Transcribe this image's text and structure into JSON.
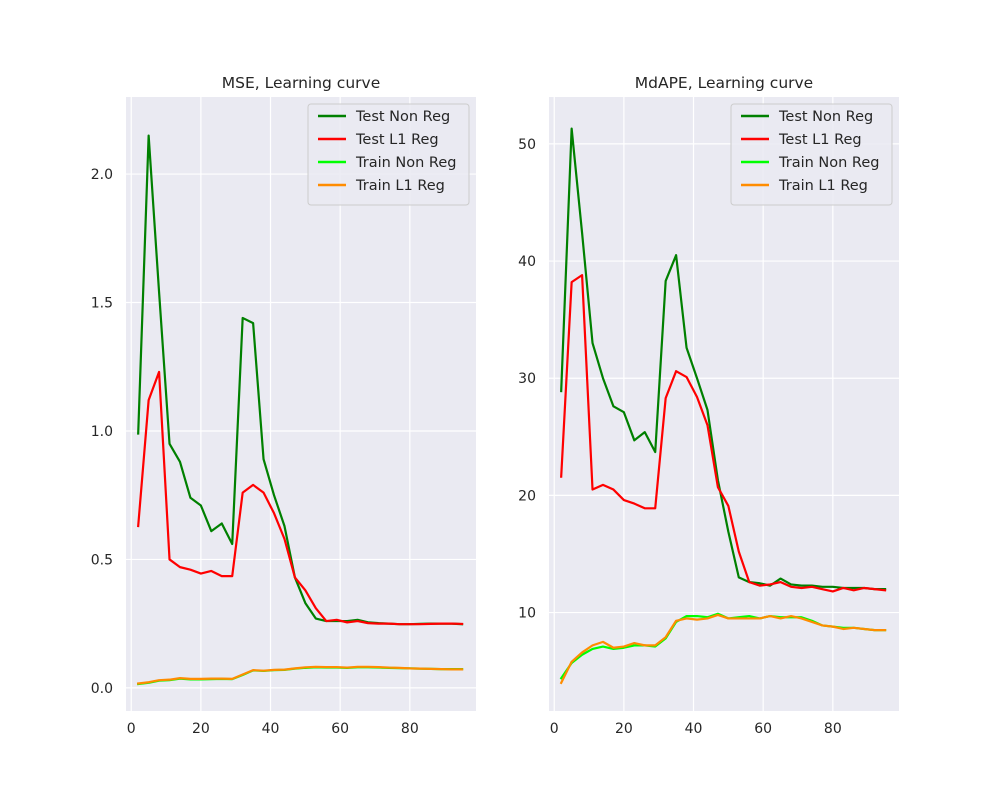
{
  "chart_data": [
    {
      "type": "line",
      "title": "MSE, Learning curve",
      "xlabel": "",
      "ylabel": "",
      "xlim": [
        -1.5,
        99
      ],
      "ylim": [
        -0.09,
        2.3
      ],
      "xticks": [
        0,
        20,
        40,
        60,
        80
      ],
      "yticks": [
        0.0,
        0.5,
        1.0,
        1.5,
        2.0
      ],
      "ytick_labels": [
        "0.0",
        "0.5",
        "1.0",
        "1.5",
        "2.0"
      ],
      "grid": true,
      "legend_position": "top-right",
      "x": [
        2,
        5,
        8,
        11,
        14,
        17,
        20,
        23,
        26,
        29,
        32,
        35,
        38,
        41,
        44,
        47,
        50,
        53,
        56,
        59,
        62,
        65,
        68,
        71,
        74,
        77,
        80,
        83,
        86,
        89,
        92,
        95
      ],
      "series": [
        {
          "name": "Test Non Reg",
          "color": "#008000",
          "values": [
            0.99,
            2.15,
            1.54,
            0.95,
            0.88,
            0.74,
            0.71,
            0.61,
            0.64,
            0.56,
            1.44,
            1.42,
            0.89,
            0.75,
            0.63,
            0.43,
            0.33,
            0.27,
            0.26,
            0.26,
            0.26,
            0.265,
            0.255,
            0.252,
            0.25,
            0.248,
            0.248,
            0.249,
            0.25,
            0.25,
            0.25,
            0.248
          ]
        },
        {
          "name": "Test L1 Reg",
          "color": "#ff0000",
          "values": [
            0.63,
            1.12,
            1.23,
            0.5,
            0.47,
            0.46,
            0.445,
            0.455,
            0.435,
            0.435,
            0.76,
            0.79,
            0.76,
            0.68,
            0.58,
            0.43,
            0.38,
            0.31,
            0.26,
            0.265,
            0.255,
            0.26,
            0.252,
            0.25,
            0.25,
            0.248,
            0.248,
            0.248,
            0.249,
            0.25,
            0.25,
            0.249
          ]
        },
        {
          "name": "Train Non Reg",
          "color": "#00ff00",
          "values": [
            0.015,
            0.02,
            0.028,
            0.03,
            0.036,
            0.033,
            0.033,
            0.034,
            0.035,
            0.034,
            0.05,
            0.068,
            0.066,
            0.069,
            0.07,
            0.075,
            0.078,
            0.08,
            0.079,
            0.079,
            0.078,
            0.08,
            0.08,
            0.079,
            0.078,
            0.077,
            0.076,
            0.075,
            0.074,
            0.073,
            0.073,
            0.073
          ]
        },
        {
          "name": "Train L1 Reg",
          "color": "#ff8c00",
          "values": [
            0.017,
            0.022,
            0.03,
            0.032,
            0.038,
            0.035,
            0.035,
            0.036,
            0.036,
            0.035,
            0.052,
            0.069,
            0.067,
            0.07,
            0.071,
            0.076,
            0.08,
            0.082,
            0.081,
            0.081,
            0.079,
            0.082,
            0.082,
            0.081,
            0.079,
            0.078,
            0.076,
            0.075,
            0.074,
            0.073,
            0.072,
            0.072
          ]
        }
      ]
    },
    {
      "type": "line",
      "title": "MdAPE, Learning curve",
      "xlabel": "",
      "ylabel": "",
      "xlim": [
        -1.5,
        99
      ],
      "ylim": [
        1.6,
        54.0
      ],
      "xticks": [
        0,
        20,
        40,
        60,
        80
      ],
      "yticks": [
        10,
        20,
        30,
        40,
        50
      ],
      "ytick_labels": [
        "10",
        "20",
        "30",
        "40",
        "50"
      ],
      "grid": true,
      "legend_position": "top-right",
      "x": [
        2,
        5,
        8,
        11,
        14,
        17,
        20,
        23,
        26,
        29,
        32,
        35,
        38,
        41,
        44,
        47,
        50,
        53,
        56,
        59,
        62,
        65,
        68,
        71,
        74,
        77,
        80,
        83,
        86,
        89,
        92,
        95
      ],
      "series": [
        {
          "name": "Test Non Reg",
          "color": "#008000",
          "values": [
            28.9,
            51.3,
            42.4,
            33.0,
            30.0,
            27.6,
            27.1,
            24.7,
            25.4,
            23.7,
            38.3,
            40.5,
            32.6,
            30.0,
            27.3,
            21.3,
            16.9,
            13.0,
            12.6,
            12.5,
            12.3,
            12.9,
            12.4,
            12.3,
            12.3,
            12.2,
            12.2,
            12.1,
            12.1,
            12.1,
            12.0,
            12.0
          ]
        },
        {
          "name": "Test L1 Reg",
          "color": "#ff0000",
          "values": [
            21.6,
            38.2,
            38.8,
            20.5,
            20.9,
            20.5,
            19.6,
            19.3,
            18.9,
            18.9,
            28.3,
            30.6,
            30.1,
            28.4,
            26.0,
            20.7,
            19.1,
            15.2,
            12.6,
            12.3,
            12.4,
            12.6,
            12.2,
            12.1,
            12.2,
            12.0,
            11.8,
            12.1,
            11.9,
            12.1,
            12.0,
            11.9
          ]
        },
        {
          "name": "Train Non Reg",
          "color": "#00ff00",
          "values": [
            4.4,
            5.7,
            6.4,
            6.9,
            7.1,
            6.9,
            7.0,
            7.2,
            7.2,
            7.1,
            7.8,
            9.2,
            9.7,
            9.7,
            9.6,
            9.9,
            9.5,
            9.6,
            9.7,
            9.5,
            9.7,
            9.6,
            9.6,
            9.6,
            9.3,
            8.9,
            8.8,
            8.7,
            8.7,
            8.6,
            8.5,
            8.5
          ]
        },
        {
          "name": "Train L1 Reg",
          "color": "#ff8c00",
          "values": [
            4.0,
            5.8,
            6.6,
            7.2,
            7.5,
            7.0,
            7.1,
            7.4,
            7.2,
            7.2,
            7.9,
            9.3,
            9.5,
            9.4,
            9.5,
            9.8,
            9.5,
            9.5,
            9.5,
            9.5,
            9.7,
            9.5,
            9.7,
            9.5,
            9.2,
            8.9,
            8.8,
            8.6,
            8.7,
            8.6,
            8.5,
            8.5
          ]
        }
      ]
    }
  ]
}
